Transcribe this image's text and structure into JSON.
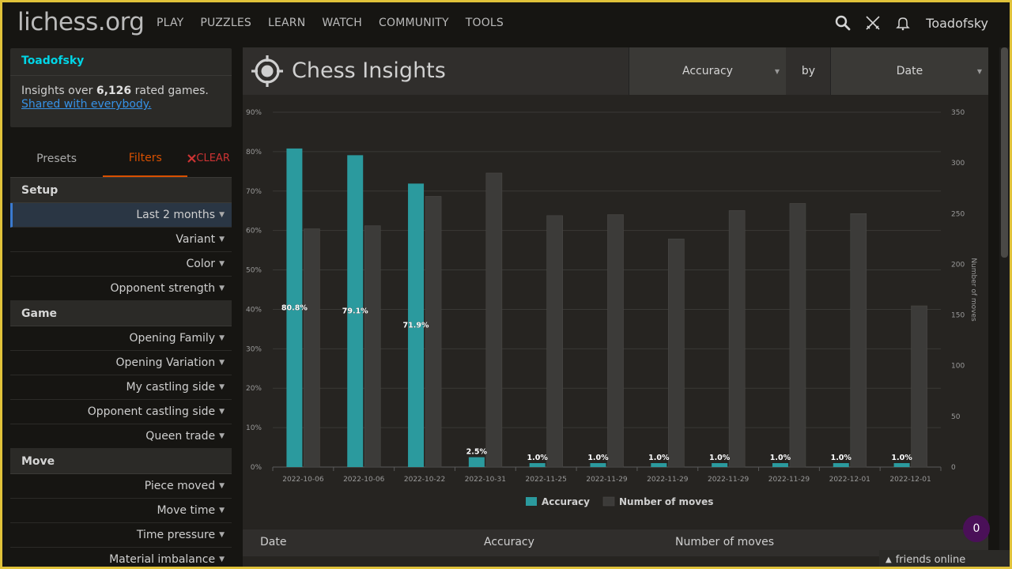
{
  "topbar": {
    "logo": "lichess.org",
    "nav": [
      "PLAY",
      "PUZZLES",
      "LEARN",
      "WATCH",
      "COMMUNITY",
      "TOOLS"
    ],
    "icons": [
      "search-icon",
      "swords-icon",
      "bell-icon"
    ],
    "username": "Toadofsky"
  },
  "sidebar": {
    "user": "Toadofsky",
    "insights_prefix": "Insights over ",
    "games_count": "6,126",
    "insights_suffix": " rated games.",
    "shared": "Shared with everybody.",
    "tabs": {
      "presets": "Presets",
      "filters": "Filters",
      "clear": "CLEAR"
    },
    "sections": {
      "setup": "Setup",
      "game": "Game",
      "move": "Move"
    },
    "setup_items": [
      "Last 2 months",
      "Variant",
      "Color",
      "Opponent strength"
    ],
    "game_items": [
      "Opening Family",
      "Opening Variation",
      "My castling side",
      "Opponent castling side",
      "Queen trade"
    ],
    "move_items": [
      "Piece moved",
      "Move time",
      "Time pressure",
      "Material imbalance"
    ]
  },
  "main": {
    "title": "Chess Insights",
    "metric": "Accuracy",
    "by": "by",
    "dimension": "Date",
    "table_headers": [
      "Date",
      "Accuracy",
      "Number of moves"
    ]
  },
  "chart_data": {
    "type": "bar",
    "categories": [
      "2022-10-06",
      "2022-10-06",
      "2022-10-22",
      "2022-10-31",
      "2022-11-25",
      "2022-11-29",
      "2022-11-29",
      "2022-11-29",
      "2022-11-29",
      "2022-12-01",
      "2022-12-01"
    ],
    "series": [
      {
        "name": "Accuracy",
        "axis": "left",
        "color": "#2b9a9e",
        "values": [
          80.8,
          79.1,
          71.9,
          2.5,
          1.0,
          1.0,
          1.0,
          1.0,
          1.0,
          1.0,
          1.0
        ],
        "labels": [
          "80.8%",
          "79.1%",
          "71.9%",
          "2.5%",
          "1.0%",
          "1.0%",
          "1.0%",
          "1.0%",
          "1.0%",
          "1.0%",
          "1.0%"
        ]
      },
      {
        "name": "Number of moves",
        "axis": "right",
        "color": "#3c3b39",
        "values": [
          235,
          238,
          267,
          290,
          248,
          249,
          225,
          253,
          260,
          250,
          159
        ]
      }
    ],
    "ylim_left": [
      0,
      90
    ],
    "yticks_left": [
      "0%",
      "10%",
      "20%",
      "30%",
      "40%",
      "50%",
      "60%",
      "70%",
      "80%",
      "90%"
    ],
    "ylim_right": [
      0,
      350
    ],
    "yticks_right": [
      "0",
      "50",
      "100",
      "150",
      "200",
      "250",
      "300",
      "350"
    ],
    "ylabel_right": "Number of moves",
    "legend_position": "bottom",
    "grid": true
  },
  "friends": {
    "label": "friends online",
    "count": "0"
  },
  "colors": {
    "accent": "#d85000",
    "link": "#3692e7",
    "teal": "#2b9a9e",
    "frame": "#e0c23a"
  }
}
